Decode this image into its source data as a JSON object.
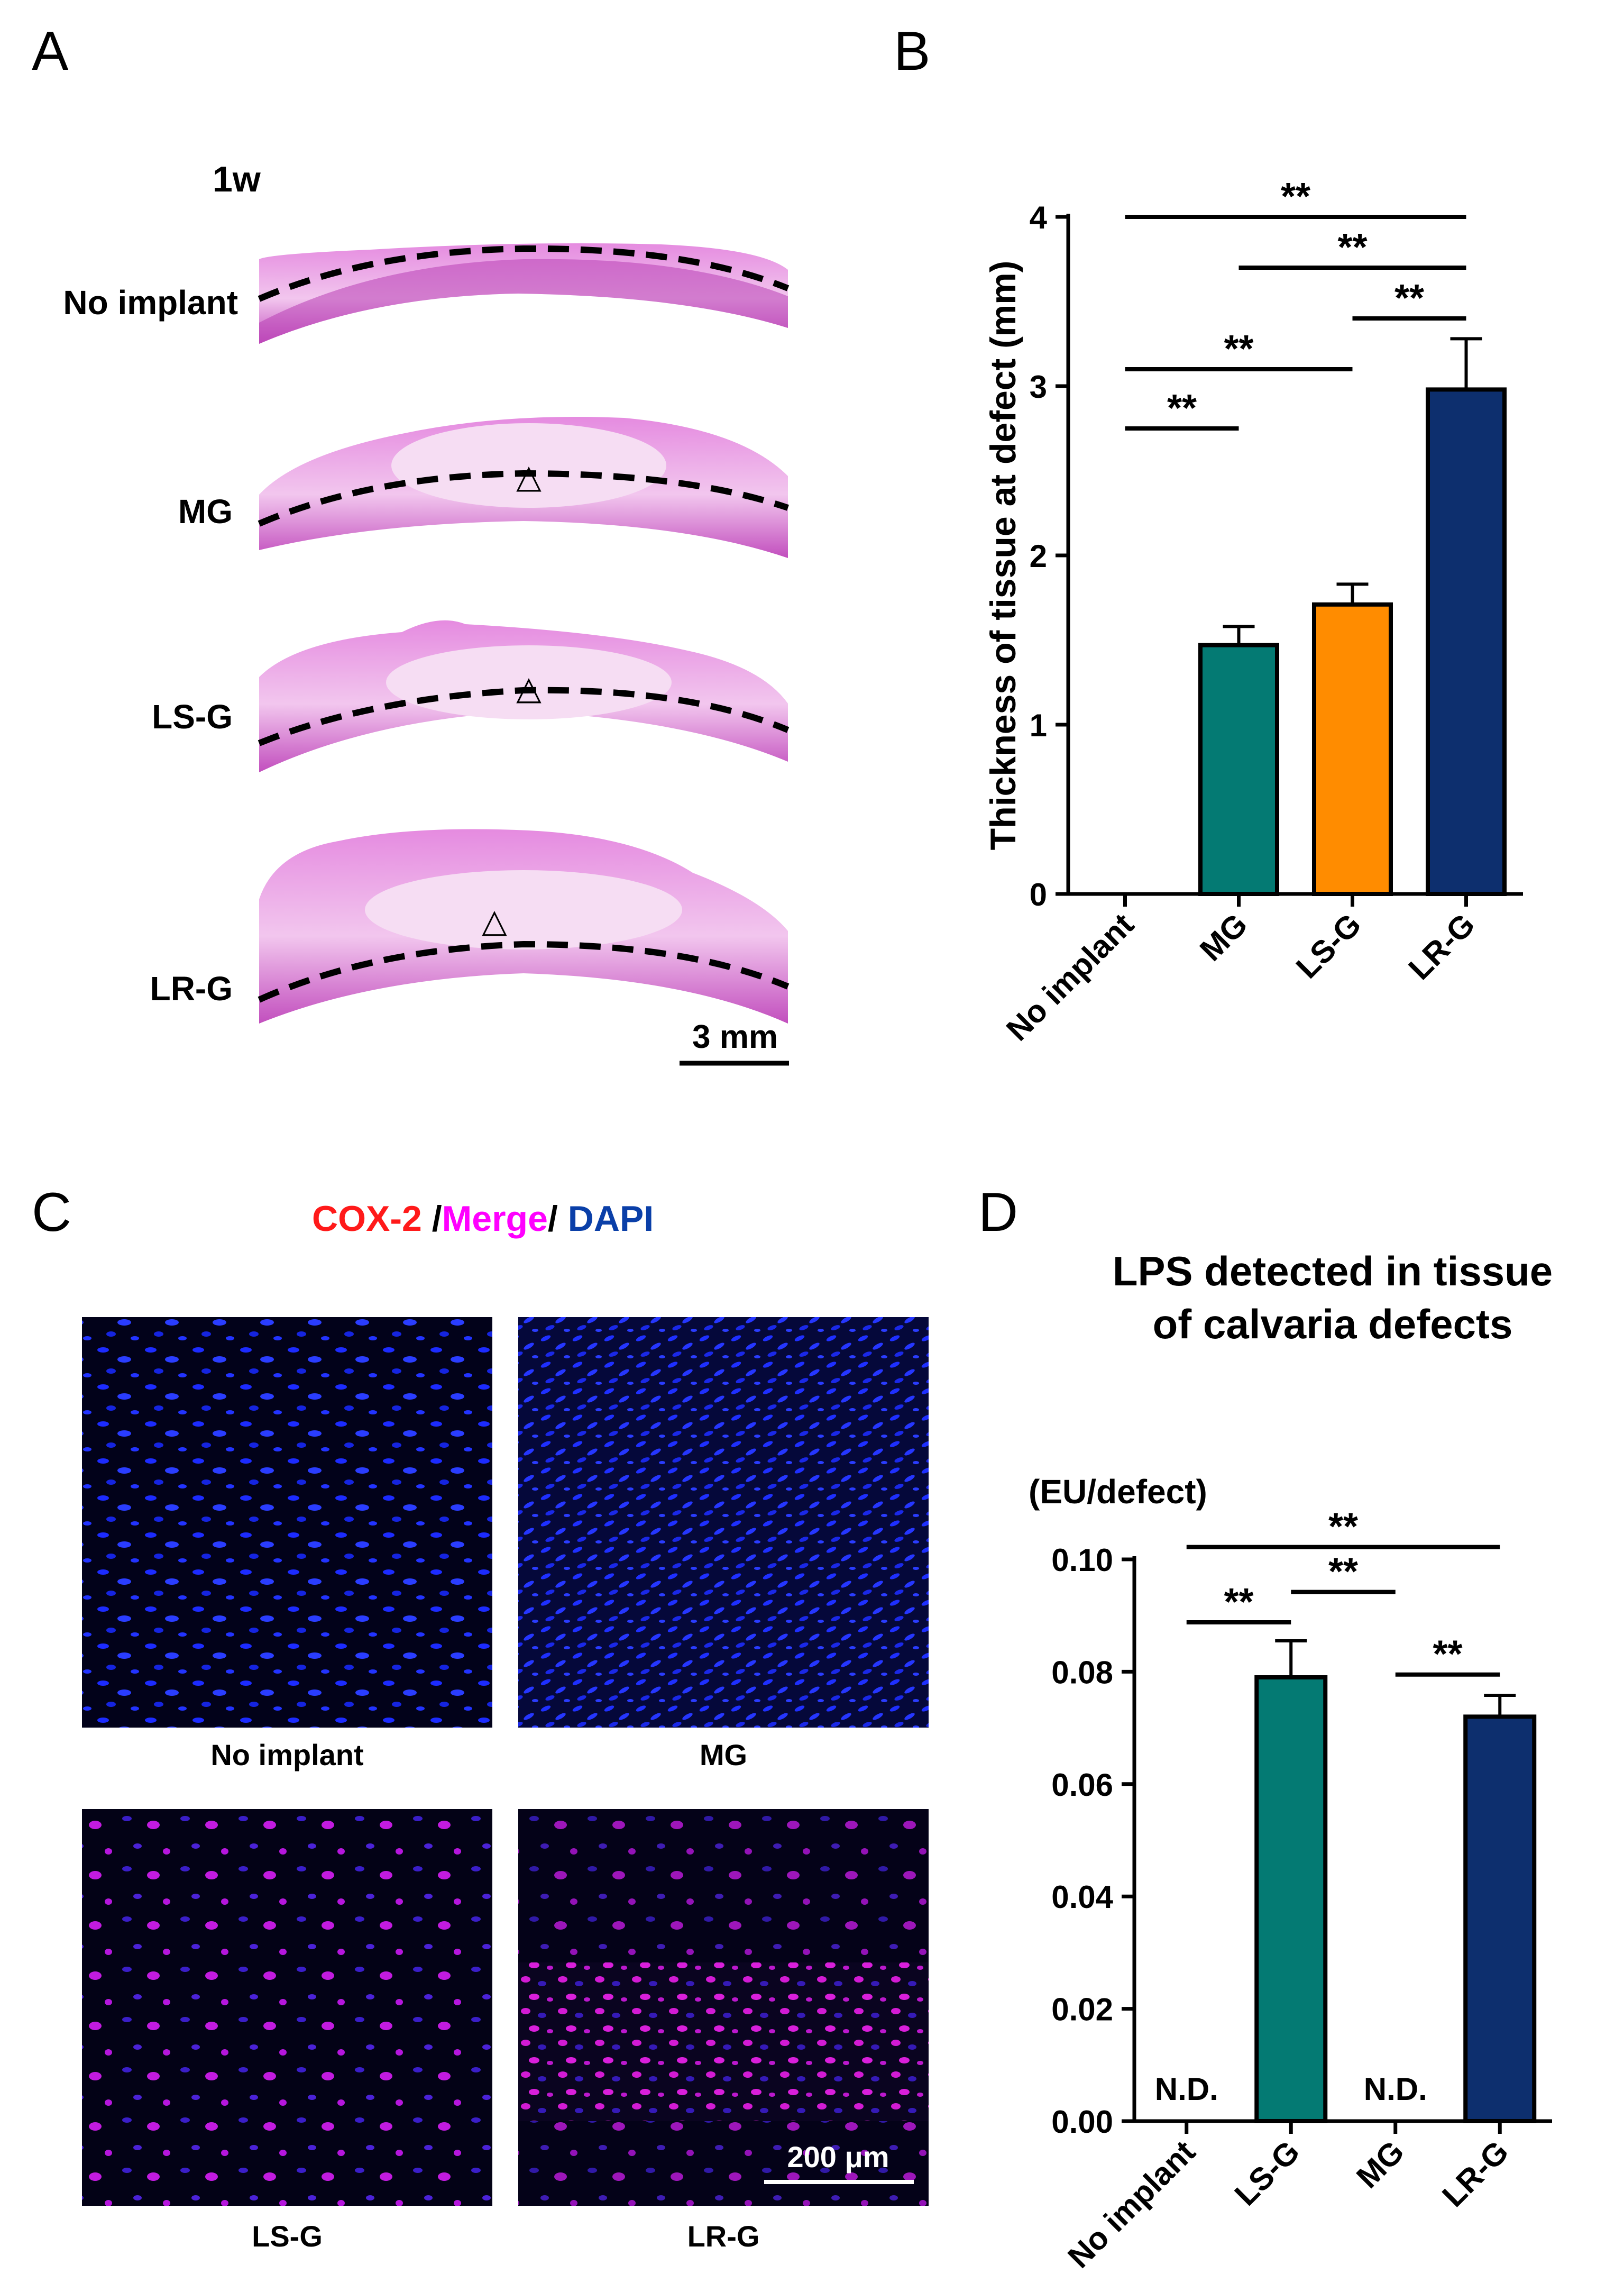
{
  "panels": {
    "a": {
      "letter": "A",
      "timepoint": "1w",
      "rows": [
        {
          "label": "No implant",
          "has_marker": false
        },
        {
          "label": "MG",
          "has_marker": true
        },
        {
          "label": "LS-G",
          "has_marker": true
        },
        {
          "label": "LR-G",
          "has_marker": true
        }
      ],
      "scale_bar": "3 mm",
      "marker_glyph": "△"
    },
    "b": {
      "letter": "B"
    },
    "c": {
      "letter": "C",
      "legend": {
        "cox2": "COX-2",
        "sep1": " /",
        "merge": "Merge",
        "sep2": "/",
        "dapi": " DAPI"
      },
      "images": [
        {
          "label": "No implant",
          "stain": "dapi-only"
        },
        {
          "label": "MG",
          "stain": "dapi-only"
        },
        {
          "label": "LS-G",
          "stain": "cox2-sparse"
        },
        {
          "label": "LR-G",
          "stain": "cox2-dense"
        }
      ],
      "scale_bar": "200 μm"
    },
    "d": {
      "letter": "D"
    }
  },
  "colors": {
    "teal": "#047A73",
    "orange": "#FF8C00",
    "navy": "#0D2F6E",
    "he_pink": "#E07AD6",
    "cox2_red": "#FF1A1A",
    "merge_magenta": "#FF00FF",
    "dapi_blue": "#0A3FA8"
  },
  "chart_data": [
    {
      "id": "B",
      "type": "bar",
      "categories": [
        "No implant",
        "MG",
        "LS-G",
        "LR-G"
      ],
      "values": [
        0,
        1.47,
        1.71,
        2.98
      ],
      "errors": [
        0,
        0.11,
        0.12,
        0.3
      ],
      "bar_colors": [
        "#ffffff",
        "#047A73",
        "#FF8C00",
        "#0D2F6E"
      ],
      "ylabel": "Thickness of tissue at defect (mm)",
      "ylim": [
        0,
        4
      ],
      "yticks": [
        "0",
        "1",
        "2",
        "3",
        "4"
      ],
      "significance": [
        {
          "from": 0,
          "to": 3,
          "y": 4.0,
          "label": "**"
        },
        {
          "from": 1,
          "to": 3,
          "y": 3.7,
          "label": "**"
        },
        {
          "from": 2,
          "to": 3,
          "y": 3.4,
          "label": "**"
        },
        {
          "from": 0,
          "to": 2,
          "y": 3.1,
          "label": "**"
        },
        {
          "from": 0,
          "to": 1,
          "y": 2.75,
          "label": "**"
        }
      ]
    },
    {
      "id": "D",
      "type": "bar",
      "title": "LPS detected in tissue of calvaria defects",
      "title_lines": [
        "LPS detected in tissue",
        "of calvaria defects"
      ],
      "categories": [
        "No implant",
        "LS-G",
        "MG",
        "LR-G"
      ],
      "values": [
        0,
        0.079,
        0,
        0.072
      ],
      "errors": [
        0,
        0.0065,
        0,
        0.0038
      ],
      "bar_colors": [
        "#ffffff",
        "#047A73",
        "#ffffff",
        "#0D2F6E"
      ],
      "value_notes": [
        "N.D.",
        "",
        "N.D.",
        ""
      ],
      "ylabel": "(EU/defect)",
      "ylim": [
        0,
        0.1
      ],
      "yticks": [
        "0.00",
        "0.02",
        "0.04",
        "0.06",
        "0.08",
        "0.10"
      ],
      "significance": [
        {
          "from": 0,
          "to": 3,
          "y": 0.1022,
          "label": "**"
        },
        {
          "from": 1,
          "to": 2,
          "y": 0.0942,
          "label": "**"
        },
        {
          "from": 0,
          "to": 1,
          "y": 0.0888,
          "label": "**"
        },
        {
          "from": 2,
          "to": 3,
          "y": 0.0795,
          "label": "**"
        }
      ]
    }
  ]
}
